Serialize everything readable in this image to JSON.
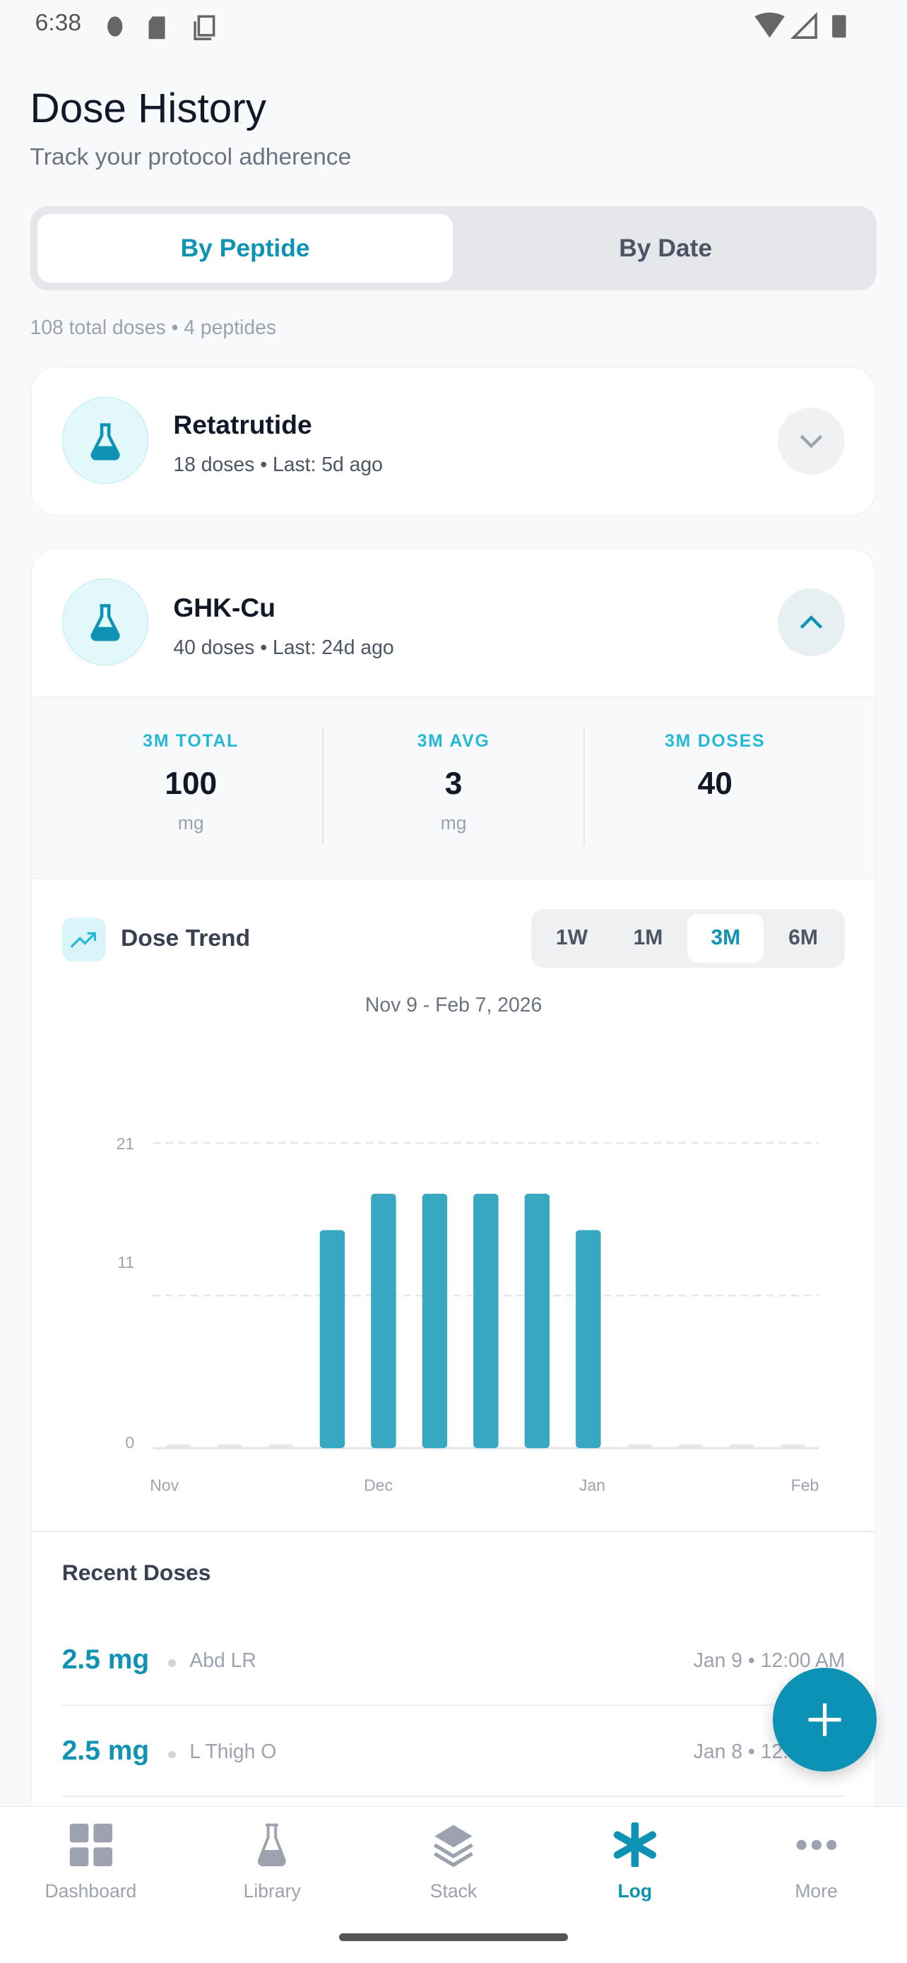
{
  "status_bar": {
    "time": "6:38",
    "left_icons": [
      "bug-icon",
      "sd-card-icon",
      "copy-icon"
    ],
    "right_icons": [
      "wifi-icon",
      "signal-icon",
      "battery-icon"
    ]
  },
  "header": {
    "title": "Dose History",
    "subtitle": "Track your protocol adherence"
  },
  "view_toggle": {
    "options": [
      "By Peptide",
      "By Date"
    ],
    "selected": "By Peptide"
  },
  "summary": "108 total doses • 4 peptides",
  "peptides": [
    {
      "name": "Retatrutide",
      "meta": "18 doses • Last: 5d ago",
      "expanded": false
    },
    {
      "name": "GHK-Cu",
      "meta": "40 doses • Last: 24d ago",
      "expanded": true
    }
  ],
  "stats": [
    {
      "label": "3M TOTAL",
      "value": "100",
      "unit": "mg"
    },
    {
      "label": "3M AVG",
      "value": "3",
      "unit": "mg"
    },
    {
      "label": "3M DOSES",
      "value": "40",
      "unit": ""
    }
  ],
  "trend": {
    "title": "Dose Trend",
    "ranges": [
      "1W",
      "1M",
      "3M",
      "6M"
    ],
    "selected": "3M",
    "date_range": "Nov 9 - Feb 7, 2026"
  },
  "chart_data": {
    "type": "bar",
    "values": [
      0,
      0,
      0,
      15,
      17.5,
      17.5,
      17.5,
      17.5,
      15,
      0,
      0,
      0,
      0
    ],
    "x_tick_labels": [
      "Nov",
      "Dec",
      "Jan",
      "Feb"
    ],
    "y_tick_labels": [
      "21",
      "11",
      "0"
    ],
    "ylim": [
      0,
      21
    ],
    "grid": true,
    "bar_color": "#38a7c2"
  },
  "recent": {
    "title": "Recent Doses",
    "items": [
      {
        "amount": "2.5 mg",
        "site": "Abd LR",
        "when": "Jan 9 • 12:00 AM"
      },
      {
        "amount": "2.5 mg",
        "site": "L Thigh O",
        "when": "Jan 8 • 12:00 AM"
      }
    ]
  },
  "nav": {
    "items": [
      {
        "label": "Dashboard",
        "icon": "grid-icon"
      },
      {
        "label": "Library",
        "icon": "flask-icon"
      },
      {
        "label": "Stack",
        "icon": "layers-icon"
      },
      {
        "label": "Log",
        "icon": "asterisk-icon"
      },
      {
        "label": "More",
        "icon": "more-icon"
      }
    ],
    "active": "Log"
  },
  "colors": {
    "accent": "#0e93b5",
    "bar": "#38a7c2"
  }
}
